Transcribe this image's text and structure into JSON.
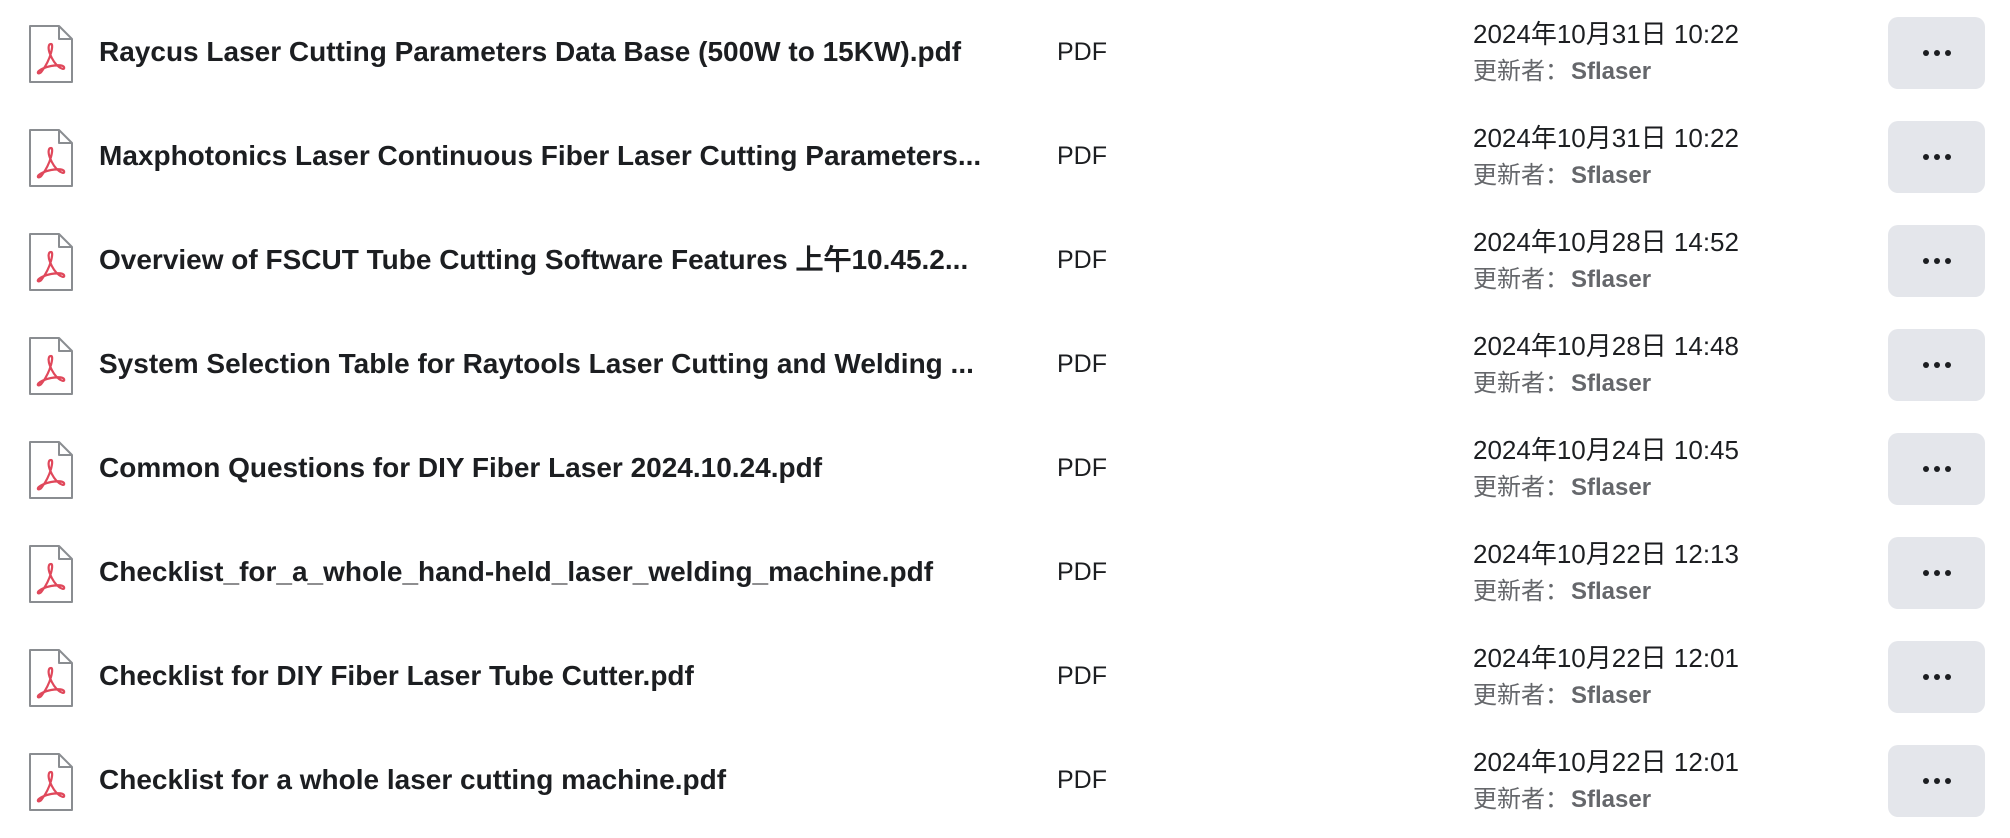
{
  "colors": {
    "pdf_icon_accent": "#e0485b",
    "icon_outline": "#8a8d91",
    "button_bg": "#e4e6eb",
    "secondary_text": "#65676b"
  },
  "files": [
    {
      "name": "Raycus Laser Cutting Parameters Data Base (500W to 15KW).pdf",
      "type": "PDF",
      "date": "2024年10月31日 10:22",
      "updater_prefix": "更新者：",
      "updater": "Sflaser",
      "icon": "pdf-file-icon",
      "more_icon": "more-icon"
    },
    {
      "name": "Maxphotonics Laser Continuous Fiber Laser Cutting Parameters...",
      "type": "PDF",
      "date": "2024年10月31日 10:22",
      "updater_prefix": "更新者：",
      "updater": "Sflaser",
      "icon": "pdf-file-icon",
      "more_icon": "more-icon"
    },
    {
      "name": "Overview of FSCUT Tube Cutting Software Features 上午10.45.2...",
      "type": "PDF",
      "date": "2024年10月28日 14:52",
      "updater_prefix": "更新者：",
      "updater": "Sflaser",
      "icon": "pdf-file-icon",
      "more_icon": "more-icon"
    },
    {
      "name": "System Selection Table for Raytools Laser Cutting and Welding ...",
      "type": "PDF",
      "date": "2024年10月28日 14:48",
      "updater_prefix": "更新者：",
      "updater": "Sflaser",
      "icon": "pdf-file-icon",
      "more_icon": "more-icon"
    },
    {
      "name": "Common Questions for DIY Fiber Laser 2024.10.24.pdf",
      "type": "PDF",
      "date": "2024年10月24日 10:45",
      "updater_prefix": "更新者：",
      "updater": "Sflaser",
      "icon": "pdf-file-icon",
      "more_icon": "more-icon"
    },
    {
      "name": "Checklist_for_a_whole_hand-held_laser_welding_machine.pdf",
      "type": "PDF",
      "date": "2024年10月22日 12:13",
      "updater_prefix": "更新者：",
      "updater": "Sflaser",
      "icon": "pdf-file-icon",
      "more_icon": "more-icon"
    },
    {
      "name": "Checklist for DIY Fiber Laser Tube Cutter.pdf",
      "type": "PDF",
      "date": "2024年10月22日 12:01",
      "updater_prefix": "更新者：",
      "updater": "Sflaser",
      "icon": "pdf-file-icon",
      "more_icon": "more-icon"
    },
    {
      "name": "Checklist for a whole laser cutting machine.pdf",
      "type": "PDF",
      "date": "2024年10月22日 12:01",
      "updater_prefix": "更新者：",
      "updater": "Sflaser",
      "icon": "pdf-file-icon",
      "more_icon": "more-icon"
    }
  ]
}
